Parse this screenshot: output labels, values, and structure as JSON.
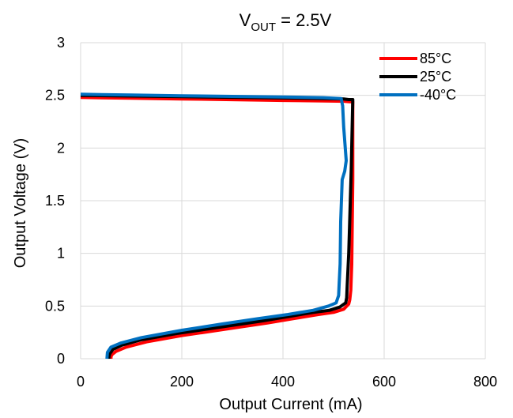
{
  "chart_data": {
    "type": "line",
    "title": "V",
    "title_sub": "OUT",
    "title_rest": " = 2.5V",
    "xlabel": "Output Current (mA)",
    "ylabel": "Output Voltage (V)",
    "xlim": [
      0,
      800
    ],
    "ylim": [
      0,
      3
    ],
    "xticks": [
      0,
      200,
      400,
      600,
      800
    ],
    "yticks": [
      0,
      0.5,
      1,
      1.5,
      2,
      2.5,
      3
    ],
    "ytick_labels": [
      "0",
      "0.5",
      "1",
      "1.5",
      "2",
      "2.5",
      "3"
    ],
    "grid": true,
    "legend_position": "top-right",
    "series": [
      {
        "name": "85°C",
        "color": "#ff0000",
        "x": [
          0,
          100,
          200,
          300,
          400,
          480,
          520,
          532,
          538,
          538,
          536,
          534,
          532,
          530,
          520,
          500,
          470,
          420,
          370,
          300,
          200,
          130,
          90,
          70,
          62,
          60,
          60
        ],
        "y": [
          2.48,
          2.473,
          2.466,
          2.459,
          2.452,
          2.447,
          2.444,
          2.44,
          2.44,
          1.7,
          0.9,
          0.65,
          0.56,
          0.52,
          0.47,
          0.44,
          0.42,
          0.38,
          0.34,
          0.29,
          0.22,
          0.16,
          0.11,
          0.07,
          0.04,
          0.02,
          0
        ]
      },
      {
        "name": "25°C",
        "color": "#000000",
        "x": [
          0,
          100,
          200,
          300,
          400,
          480,
          520,
          530,
          538,
          535,
          530,
          527,
          526,
          524,
          512,
          492,
          460,
          410,
          360,
          290,
          190,
          120,
          82,
          64,
          58,
          56,
          56
        ],
        "y": [
          2.5,
          2.494,
          2.488,
          2.482,
          2.476,
          2.47,
          2.465,
          2.46,
          2.46,
          1.8,
          1.0,
          0.7,
          0.58,
          0.53,
          0.49,
          0.46,
          0.44,
          0.4,
          0.36,
          0.31,
          0.24,
          0.18,
          0.13,
          0.09,
          0.05,
          0.02,
          0
        ]
      },
      {
        "name": "-40°C",
        "color": "#0070c0",
        "x": [
          0,
          100,
          200,
          300,
          400,
          480,
          515,
          518,
          520,
          525,
          522,
          517,
          514,
          513,
          511,
          510,
          505,
          490,
          460,
          410,
          350,
          280,
          200,
          120,
          80,
          60,
          53,
          52
        ],
        "y": [
          2.51,
          2.503,
          2.496,
          2.49,
          2.484,
          2.478,
          2.47,
          2.4,
          2.2,
          1.88,
          1.78,
          1.7,
          1.3,
          0.9,
          0.7,
          0.6,
          0.53,
          0.5,
          0.46,
          0.42,
          0.38,
          0.33,
          0.27,
          0.2,
          0.15,
          0.11,
          0.06,
          0
        ]
      }
    ]
  }
}
